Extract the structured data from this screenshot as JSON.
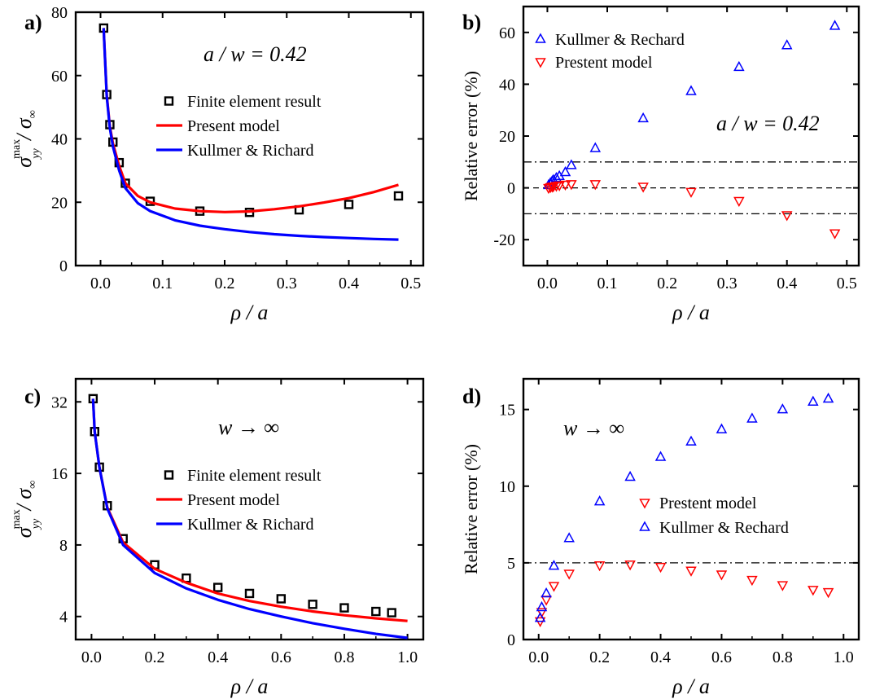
{
  "chart_data": [
    {
      "panel": "a)",
      "type": "line",
      "annotation": "a / w = 0.42",
      "xlabel": "ρ / a",
      "ylabel_main": "σ",
      "ylabel_sup": "max",
      "ylabel_sub": "yy",
      "ylabel_tail": " / σ",
      "ylabel_tail_sub": "∞",
      "xlim": [
        -0.04,
        0.52
      ],
      "ylim": [
        0,
        80
      ],
      "xticks": [
        0.0,
        0.1,
        0.2,
        0.3,
        0.4,
        0.5
      ],
      "xtick_labels": [
        "0.0",
        "0.1",
        "0.2",
        "0.3",
        "0.4",
        "0.5"
      ],
      "yticks": [
        0,
        20,
        40,
        60,
        80
      ],
      "ytick_labels": [
        "0",
        "20",
        "40",
        "60",
        "80"
      ],
      "legend": [
        "Finite element result",
        "Present model",
        "Kullmer & Richard"
      ],
      "series": [
        {
          "name": "Finite element result",
          "kind": "scatter",
          "marker": "square",
          "color": "#000000",
          "x": [
            0.005,
            0.01,
            0.015,
            0.02,
            0.03,
            0.04,
            0.08,
            0.16,
            0.24,
            0.32,
            0.4,
            0.48
          ],
          "y": [
            75,
            54,
            44.5,
            39,
            32.5,
            26,
            20.3,
            17.2,
            16.8,
            17.6,
            19.3,
            22
          ]
        },
        {
          "name": "Present model",
          "kind": "line",
          "color": "#ff0000",
          "x": [
            0.005,
            0.01,
            0.015,
            0.02,
            0.03,
            0.04,
            0.06,
            0.08,
            0.12,
            0.16,
            0.2,
            0.24,
            0.28,
            0.32,
            0.36,
            0.4,
            0.44,
            0.48
          ],
          "y": [
            75,
            54,
            44,
            38.5,
            31.5,
            26,
            22,
            20,
            18,
            17.2,
            16.9,
            17.1,
            17.8,
            18.7,
            19.9,
            21.3,
            23.2,
            25.5
          ]
        },
        {
          "name": "Kullmer & Richard",
          "kind": "line",
          "color": "#0000ff",
          "x": [
            0.005,
            0.01,
            0.015,
            0.02,
            0.03,
            0.04,
            0.06,
            0.08,
            0.12,
            0.16,
            0.2,
            0.24,
            0.28,
            0.32,
            0.36,
            0.4,
            0.44,
            0.48
          ],
          "y": [
            75,
            53.5,
            43.5,
            37.5,
            30,
            24.5,
            19.7,
            17.2,
            14.3,
            12.6,
            11.5,
            10.6,
            9.9,
            9.4,
            9.0,
            8.7,
            8.4,
            8.2
          ]
        }
      ]
    },
    {
      "panel": "b)",
      "type": "scatter",
      "annotation": "a / w = 0.42",
      "xlabel": "ρ / a",
      "ylabel": "Relative error (%)",
      "xlim": [
        -0.04,
        0.52
      ],
      "ylim": [
        -30,
        70
      ],
      "xticks": [
        0.0,
        0.1,
        0.2,
        0.3,
        0.4,
        0.5
      ],
      "xtick_labels": [
        "0.0",
        "0.1",
        "0.2",
        "0.3",
        "0.4",
        "0.5"
      ],
      "yticks": [
        -20,
        0,
        20,
        40,
        60
      ],
      "ytick_labels": [
        "-20",
        "0",
        "20",
        "40",
        "60"
      ],
      "hlines": [
        {
          "y": 10,
          "style": "dashdot"
        },
        {
          "y": 0,
          "style": "dashed"
        },
        {
          "y": -10,
          "style": "dashdot"
        }
      ],
      "legend": [
        "Kullmer & Rechard",
        "Prestent model"
      ],
      "series": [
        {
          "name": "Kullmer & Rechard",
          "marker": "triangle-up",
          "color": "#0000ff",
          "x": [
            0.002,
            0.005,
            0.008,
            0.01,
            0.015,
            0.02,
            0.03,
            0.04,
            0.08,
            0.16,
            0.24,
            0.32,
            0.4,
            0.48
          ],
          "y": [
            1,
            1.8,
            2.5,
            3,
            3.8,
            4.5,
            6,
            8.7,
            15.3,
            26.8,
            37.3,
            46.6,
            55,
            62.5
          ]
        },
        {
          "name": "Prestent model",
          "marker": "triangle-down",
          "color": "#ff0000",
          "x": [
            0.002,
            0.005,
            0.008,
            0.01,
            0.015,
            0.02,
            0.03,
            0.04,
            0.08,
            0.16,
            0.24,
            0.32,
            0.4,
            0.48
          ],
          "y": [
            0,
            0.3,
            0.5,
            0.6,
            0.8,
            1,
            1.3,
            1.5,
            1.5,
            0.5,
            -1.5,
            -5,
            -10.5,
            -17.5
          ]
        }
      ]
    },
    {
      "panel": "c)",
      "type": "line",
      "annotation": "w → ∞",
      "xlabel": "ρ / a",
      "ylabel_main": "σ",
      "ylabel_sup": "max",
      "ylabel_sub": "yy",
      "ylabel_tail": " / σ",
      "ylabel_tail_sub": "∞",
      "yscale": "log2",
      "xlim": [
        -0.05,
        1.05
      ],
      "ylim": [
        3.2,
        40
      ],
      "xticks": [
        0.0,
        0.2,
        0.4,
        0.6,
        0.8,
        1.0
      ],
      "xtick_labels": [
        "0.0",
        "0.2",
        "0.4",
        "0.6",
        "0.8",
        "1.0"
      ],
      "yticks": [
        4,
        8,
        16,
        32
      ],
      "ytick_labels": [
        "4",
        "8",
        "16",
        "32"
      ],
      "legend": [
        "Finite element result",
        "Present model",
        "Kullmer & Richard"
      ],
      "series": [
        {
          "name": "Finite element result",
          "kind": "scatter",
          "marker": "square",
          "color": "#000000",
          "x": [
            0.005,
            0.01,
            0.025,
            0.05,
            0.1,
            0.2,
            0.3,
            0.4,
            0.5,
            0.6,
            0.7,
            0.8,
            0.9,
            0.95
          ],
          "y": [
            33,
            24,
            17,
            11.7,
            8.5,
            6.6,
            5.8,
            5.3,
            5.0,
            4.75,
            4.5,
            4.35,
            4.2,
            4.15
          ]
        },
        {
          "name": "Present model",
          "kind": "line",
          "color": "#ff0000",
          "x": [
            0.005,
            0.01,
            0.025,
            0.05,
            0.1,
            0.2,
            0.3,
            0.4,
            0.5,
            0.6,
            0.7,
            0.8,
            0.9,
            1.0
          ],
          "y": [
            33,
            24,
            17,
            11.5,
            8.2,
            6.35,
            5.55,
            5.0,
            4.65,
            4.4,
            4.2,
            4.05,
            3.93,
            3.83
          ]
        },
        {
          "name": "Kullmer & Richard",
          "kind": "line",
          "color": "#0000ff",
          "x": [
            0.005,
            0.01,
            0.025,
            0.05,
            0.1,
            0.2,
            0.3,
            0.4,
            0.5,
            0.6,
            0.7,
            0.8,
            0.9,
            1.0
          ],
          "y": [
            33,
            24,
            17,
            11.4,
            8.0,
            6.1,
            5.25,
            4.7,
            4.3,
            4.0,
            3.75,
            3.55,
            3.38,
            3.25
          ]
        }
      ]
    },
    {
      "panel": "d)",
      "type": "scatter",
      "annotation": "w → ∞",
      "xlabel": "ρ / a",
      "ylabel": "Relative error (%)",
      "xlim": [
        -0.05,
        1.05
      ],
      "ylim": [
        0,
        17
      ],
      "xticks": [
        0.0,
        0.2,
        0.4,
        0.6,
        0.8,
        1.0
      ],
      "xtick_labels": [
        "0.0",
        "0.2",
        "0.4",
        "0.6",
        "0.8",
        "1.0"
      ],
      "yticks": [
        0,
        5,
        10,
        15
      ],
      "ytick_labels": [
        "0",
        "5",
        "10",
        "15"
      ],
      "hlines": [
        {
          "y": 5,
          "style": "dashdot"
        }
      ],
      "legend": [
        "Prestent model",
        "Kullmer & Rechard"
      ],
      "series": [
        {
          "name": "Prestent model",
          "marker": "triangle-down",
          "color": "#ff0000",
          "x": [
            0.005,
            0.01,
            0.025,
            0.05,
            0.1,
            0.2,
            0.3,
            0.4,
            0.5,
            0.6,
            0.7,
            0.8,
            0.9,
            0.95
          ],
          "y": [
            1.2,
            1.8,
            2.6,
            3.5,
            4.3,
            4.85,
            4.9,
            4.75,
            4.5,
            4.25,
            3.9,
            3.55,
            3.25,
            3.1
          ]
        },
        {
          "name": "Kullmer & Rechard",
          "marker": "triangle-up",
          "color": "#0000ff",
          "x": [
            0.005,
            0.01,
            0.025,
            0.05,
            0.1,
            0.2,
            0.3,
            0.4,
            0.5,
            0.6,
            0.7,
            0.8,
            0.9,
            0.95
          ],
          "y": [
            1.4,
            2.1,
            3.0,
            4.8,
            6.6,
            9.0,
            10.6,
            11.9,
            12.9,
            13.7,
            14.4,
            15.0,
            15.5,
            15.7
          ]
        }
      ]
    }
  ]
}
